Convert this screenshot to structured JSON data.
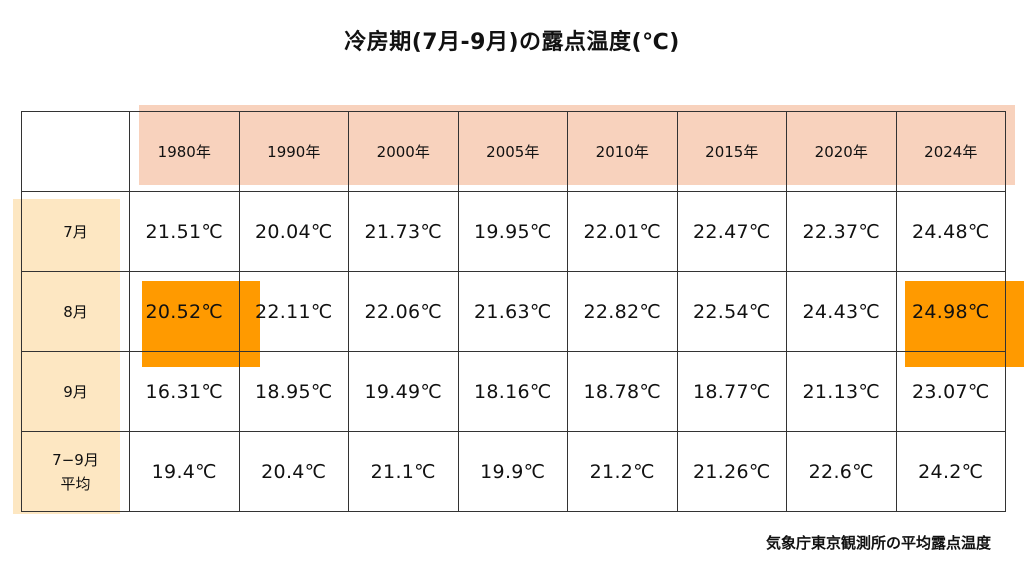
{
  "chart_data": {
    "type": "table",
    "title": "冷房期(7月-9月)の露点温度(℃)",
    "columns": [
      "1980年",
      "1990年",
      "2000年",
      "2005年",
      "2010年",
      "2015年",
      "2020年",
      "2024年"
    ],
    "rows": [
      {
        "label": "7月",
        "values": [
          "21.51℃",
          "20.04℃",
          "21.73℃",
          "19.95℃",
          "22.01℃",
          "22.47℃",
          "22.37℃",
          "24.48℃"
        ]
      },
      {
        "label": "8月",
        "values": [
          "20.52℃",
          "22.11℃",
          "22.06℃",
          "21.63℃",
          "22.82℃",
          "22.54℃",
          "24.43℃",
          "24.98℃"
        ]
      },
      {
        "label": "9月",
        "values": [
          "16.31℃",
          "18.95℃",
          "19.49℃",
          "18.16℃",
          "18.78℃",
          "18.77℃",
          "21.13℃",
          "23.07℃"
        ]
      },
      {
        "label": "7−9月\n平均",
        "values": [
          "19.4℃",
          "20.4℃",
          "21.1℃",
          "19.9℃",
          "21.2℃",
          "21.26℃",
          "22.6℃",
          "24.2℃"
        ]
      }
    ],
    "highlighted_cells": [
      {
        "row": "8月",
        "column": "1980年"
      },
      {
        "row": "8月",
        "column": "2024年"
      }
    ],
    "source": "気象庁東京観測所の平均露点温度"
  },
  "colors": {
    "header_highlight": "#f8d2bd",
    "row_label_highlight": "#fde7c2",
    "cell_highlight": "#ff9a00"
  }
}
